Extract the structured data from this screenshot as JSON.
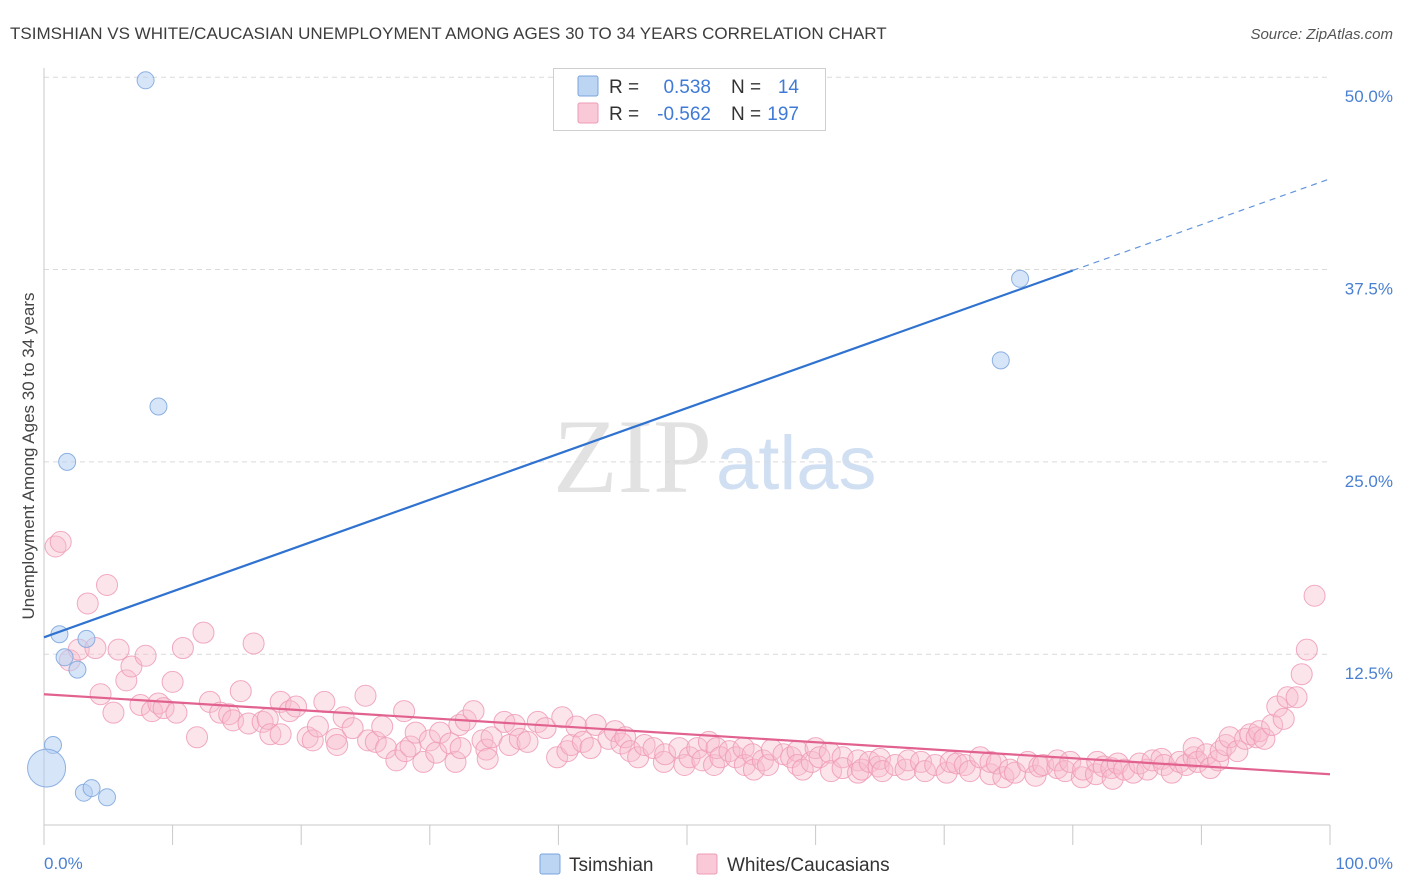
{
  "colors": {
    "tsimshian_fill": "#b5d0f2",
    "tsimshian_stroke": "#7ba4dd",
    "tsimshian_line": "#2f72cf",
    "white_fill": "#f7bccd",
    "white_stroke": "#ef9bb6",
    "white_line": "#e2628f",
    "tick_text": "#4a80d2",
    "grid": "#dadada",
    "axis": "#c8c8c8"
  },
  "watermark": {
    "zip": "ZIP",
    "atlas": "atlas"
  },
  "chart_data": {
    "type": "scatter",
    "title": "TSIMSHIAN VS WHITE/CAUCASIAN UNEMPLOYMENT AMONG AGES 30 TO 34 YEARS CORRELATION CHART",
    "source": "Source: ZipAtlas.com",
    "xlabel": "",
    "ylabel": "Unemployment Among Ages 30 to 34 years",
    "xlim": [
      0,
      100
    ],
    "ylim": [
      1.4,
      50.6
    ],
    "xticks": [
      0,
      10,
      20,
      30,
      40,
      50,
      60,
      70,
      80,
      90,
      100
    ],
    "xtick_labels": [
      {
        "value": 0,
        "label": "0.0%"
      },
      {
        "value": 100,
        "label": "100.0%"
      }
    ],
    "yticks": [
      12.5,
      25.0,
      37.5,
      50.0
    ],
    "ytick_labels": [
      "12.5%",
      "25.0%",
      "37.5%",
      "50.0%"
    ],
    "grid": "horizontal dashed",
    "legend": {
      "position": "top-center",
      "stats": [
        {
          "series": "Tsimshian",
          "r_label": "R =",
          "r": "0.538",
          "n_label": "N =",
          "n": "14"
        },
        {
          "series": "Whites/Caucasians",
          "r_label": "R =",
          "r": "-0.562",
          "n_label": "N =",
          "n": "197"
        }
      ],
      "series_names": [
        "Tsimshian",
        "Whites/Caucasians"
      ]
    },
    "series": [
      {
        "name": "Tsimshian",
        "points": [
          [
            7.9,
            49.8
          ],
          [
            8.9,
            28.6
          ],
          [
            1.8,
            25.0
          ],
          [
            1.2,
            13.8
          ],
          [
            3.3,
            13.5
          ],
          [
            1.6,
            12.3
          ],
          [
            2.6,
            11.5
          ],
          [
            0.7,
            6.6
          ],
          [
            0.2,
            5.1
          ],
          [
            3.1,
            3.5
          ],
          [
            3.7,
            3.8
          ],
          [
            4.9,
            3.2
          ],
          [
            75.9,
            36.9
          ],
          [
            74.4,
            31.6
          ]
        ],
        "weights": [
          1,
          1,
          1,
          1,
          1,
          1,
          1,
          1,
          5,
          1,
          1,
          1,
          1,
          1
        ]
      },
      {
        "name": "Whites/Caucasians",
        "points": [
          [
            0.9,
            19.5
          ],
          [
            1.3,
            19.8
          ],
          [
            2.0,
            12.1
          ],
          [
            2.7,
            12.8
          ],
          [
            3.4,
            15.8
          ],
          [
            4.0,
            12.9
          ],
          [
            4.4,
            9.9
          ],
          [
            4.9,
            17.0
          ],
          [
            5.4,
            8.7
          ],
          [
            5.8,
            12.8
          ],
          [
            6.4,
            10.8
          ],
          [
            6.8,
            11.7
          ],
          [
            7.5,
            9.2
          ],
          [
            7.9,
            12.4
          ],
          [
            8.4,
            8.8
          ],
          [
            8.9,
            9.3
          ],
          [
            9.3,
            9.0
          ],
          [
            10.0,
            10.7
          ],
          [
            10.3,
            8.7
          ],
          [
            10.8,
            12.9
          ],
          [
            11.9,
            7.1
          ],
          [
            12.4,
            13.9
          ],
          [
            12.9,
            9.4
          ],
          [
            13.7,
            8.7
          ],
          [
            14.4,
            8.6
          ],
          [
            14.7,
            8.2
          ],
          [
            15.3,
            10.1
          ],
          [
            15.9,
            8.0
          ],
          [
            16.3,
            13.2
          ],
          [
            17.0,
            8.1
          ],
          [
            17.4,
            8.3
          ],
          [
            17.6,
            7.3
          ],
          [
            18.4,
            7.3
          ],
          [
            18.4,
            9.4
          ],
          [
            19.1,
            8.8
          ],
          [
            19.6,
            9.1
          ],
          [
            20.5,
            7.1
          ],
          [
            20.9,
            6.9
          ],
          [
            21.3,
            7.8
          ],
          [
            21.8,
            9.4
          ],
          [
            22.7,
            7.0
          ],
          [
            22.8,
            6.6
          ],
          [
            23.3,
            8.4
          ],
          [
            24.0,
            7.7
          ],
          [
            25.0,
            9.8
          ],
          [
            25.2,
            6.9
          ],
          [
            25.8,
            6.8
          ],
          [
            26.3,
            7.8
          ],
          [
            26.6,
            6.4
          ],
          [
            27.4,
            5.6
          ],
          [
            28.0,
            8.8
          ],
          [
            28.1,
            6.2
          ],
          [
            28.5,
            6.5
          ],
          [
            28.9,
            7.4
          ],
          [
            29.5,
            5.5
          ],
          [
            30.0,
            6.9
          ],
          [
            30.5,
            6.1
          ],
          [
            30.8,
            7.4
          ],
          [
            31.6,
            6.7
          ],
          [
            32.0,
            5.5
          ],
          [
            32.3,
            7.9
          ],
          [
            32.4,
            6.4
          ],
          [
            32.8,
            8.2
          ],
          [
            33.4,
            8.8
          ],
          [
            34.1,
            6.9
          ],
          [
            34.4,
            6.3
          ],
          [
            34.5,
            5.7
          ],
          [
            34.8,
            7.1
          ],
          [
            35.8,
            8.1
          ],
          [
            36.2,
            6.6
          ],
          [
            36.6,
            7.9
          ],
          [
            37.0,
            7.0
          ],
          [
            37.6,
            6.8
          ],
          [
            38.4,
            8.1
          ],
          [
            39.0,
            7.7
          ],
          [
            39.9,
            5.8
          ],
          [
            40.3,
            8.4
          ],
          [
            40.7,
            6.2
          ],
          [
            41.0,
            6.6
          ],
          [
            41.4,
            7.8
          ],
          [
            41.9,
            6.8
          ],
          [
            42.5,
            6.4
          ],
          [
            42.9,
            7.9
          ],
          [
            43.9,
            7.0
          ],
          [
            44.4,
            7.5
          ],
          [
            44.9,
            6.7
          ],
          [
            45.2,
            7.1
          ],
          [
            45.6,
            6.2
          ],
          [
            46.2,
            5.8
          ],
          [
            46.7,
            6.6
          ],
          [
            47.4,
            6.4
          ],
          [
            48.2,
            5.5
          ],
          [
            48.3,
            6.0
          ],
          [
            49.4,
            6.4
          ],
          [
            49.8,
            5.3
          ],
          [
            50.2,
            5.8
          ],
          [
            50.8,
            6.4
          ],
          [
            51.2,
            5.6
          ],
          [
            51.7,
            6.8
          ],
          [
            52.1,
            5.3
          ],
          [
            52.3,
            6.4
          ],
          [
            52.6,
            5.8
          ],
          [
            53.3,
            6.2
          ],
          [
            53.8,
            5.8
          ],
          [
            54.4,
            6.4
          ],
          [
            54.5,
            5.3
          ],
          [
            55.1,
            6.0
          ],
          [
            55.2,
            5.0
          ],
          [
            55.9,
            5.6
          ],
          [
            56.3,
            5.3
          ],
          [
            56.6,
            6.3
          ],
          [
            57.5,
            6.0
          ],
          [
            58.1,
            5.8
          ],
          [
            58.6,
            6.2
          ],
          [
            58.6,
            5.3
          ],
          [
            59.0,
            5.0
          ],
          [
            59.7,
            5.5
          ],
          [
            60.0,
            6.4
          ],
          [
            60.3,
            5.8
          ],
          [
            61.1,
            6.1
          ],
          [
            61.2,
            4.9
          ],
          [
            62.1,
            5.8
          ],
          [
            62.1,
            5.1
          ],
          [
            63.3,
            5.6
          ],
          [
            63.3,
            4.8
          ],
          [
            63.6,
            5.0
          ],
          [
            64.2,
            5.5
          ],
          [
            64.9,
            5.2
          ],
          [
            65.0,
            5.7
          ],
          [
            65.2,
            4.9
          ],
          [
            66.2,
            5.3
          ],
          [
            67.0,
            5.0
          ],
          [
            67.2,
            5.6
          ],
          [
            68.2,
            5.5
          ],
          [
            68.5,
            4.9
          ],
          [
            69.3,
            5.3
          ],
          [
            70.2,
            4.8
          ],
          [
            70.5,
            5.5
          ],
          [
            71.0,
            5.4
          ],
          [
            71.6,
            5.3
          ],
          [
            72.0,
            4.9
          ],
          [
            72.8,
            5.8
          ],
          [
            73.6,
            4.7
          ],
          [
            73.6,
            5.5
          ],
          [
            74.1,
            5.4
          ],
          [
            74.6,
            4.5
          ],
          [
            75.1,
            5.0
          ],
          [
            75.5,
            4.8
          ],
          [
            76.5,
            5.5
          ],
          [
            77.1,
            4.6
          ],
          [
            77.4,
            5.2
          ],
          [
            77.7,
            5.3
          ],
          [
            78.8,
            5.1
          ],
          [
            78.8,
            5.6
          ],
          [
            79.4,
            4.9
          ],
          [
            79.8,
            5.5
          ],
          [
            80.7,
            4.5
          ],
          [
            80.8,
            5.0
          ],
          [
            81.8,
            4.7
          ],
          [
            81.9,
            5.5
          ],
          [
            82.4,
            5.2
          ],
          [
            83.0,
            5.1
          ],
          [
            83.1,
            4.4
          ],
          [
            83.5,
            5.4
          ],
          [
            84.0,
            5.0
          ],
          [
            84.7,
            4.8
          ],
          [
            85.2,
            5.4
          ],
          [
            85.8,
            5.0
          ],
          [
            86.2,
            5.6
          ],
          [
            86.9,
            5.7
          ],
          [
            87.1,
            5.3
          ],
          [
            87.7,
            4.8
          ],
          [
            88.3,
            5.5
          ],
          [
            88.8,
            5.3
          ],
          [
            89.4,
            5.8
          ],
          [
            89.4,
            6.4
          ],
          [
            89.7,
            5.5
          ],
          [
            90.4,
            6.0
          ],
          [
            90.7,
            5.1
          ],
          [
            91.3,
            5.6
          ],
          [
            91.5,
            6.2
          ],
          [
            91.9,
            6.6
          ],
          [
            92.2,
            7.1
          ],
          [
            92.8,
            6.2
          ],
          [
            93.4,
            7.0
          ],
          [
            93.8,
            7.3
          ],
          [
            94.3,
            7.1
          ],
          [
            94.5,
            7.5
          ],
          [
            94.9,
            7.0
          ],
          [
            95.5,
            7.9
          ],
          [
            95.9,
            9.1
          ],
          [
            96.4,
            8.3
          ],
          [
            96.7,
            9.7
          ],
          [
            97.4,
            9.7
          ],
          [
            97.8,
            11.2
          ],
          [
            98.2,
            12.8
          ],
          [
            98.8,
            16.3
          ]
        ]
      }
    ],
    "trend_lines": [
      {
        "series": "Tsimshian",
        "x": [
          0,
          100
        ],
        "y": [
          13.6,
          43.4
        ],
        "solid_until": 80
      },
      {
        "series": "Whites/Caucasians",
        "x": [
          0,
          100
        ],
        "y": [
          9.9,
          4.7
        ]
      }
    ]
  }
}
